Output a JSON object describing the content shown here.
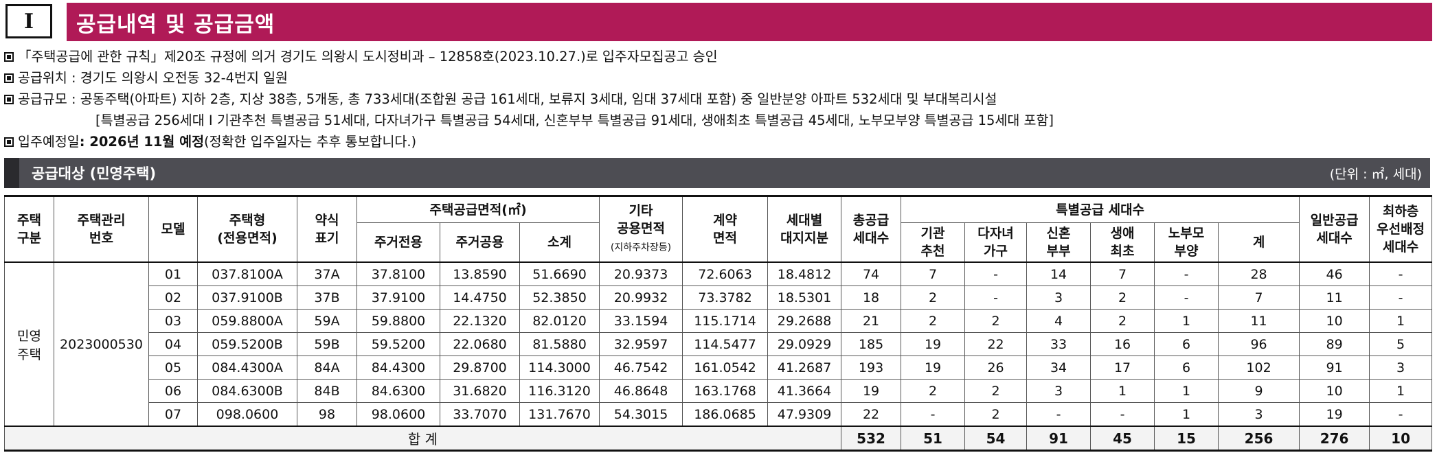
{
  "header": {
    "section_number": "Ⅰ",
    "title": "공급내역 및 공급금액"
  },
  "notes": {
    "approval": "「주택공급에 관한 규칙」제20조 규정에 의거 경기도 의왕시 도시정비과 – 12858호(2023.10.27.)로 입주자모집공고 승인",
    "location": "공급위치 : 경기도 의왕시 오전동 32-4번지 일원",
    "scale": "공급규모 : 공동주택(아파트) 지하 2층, 지상 38층, 5개동, 총 733세대(조합원 공급 161세대, 보류지 3세대, 임대 37세대 포함) 중 일반분양 아파트 532세대 및 부대복리시설",
    "scale_detail": "[특별공급 256세대 I 기관추천 특별공급 51세대, 다자녀가구 특별공급 54세대, 신혼부부 특별공급 91세대, 생애최초 특별공급 45세대, 노부모부양 특별공급 15세대 포함]",
    "movein_label": "입주예정일",
    "movein_value": ": 2026년 11월 예정",
    "movein_note": "(정확한 입주일자는 추후 통보합니다.)"
  },
  "section": {
    "title": "공급대상 (민영주택)",
    "unit": "(단위 : ㎡, 세대)"
  },
  "table": {
    "headers": {
      "housing_type": "주택\n구분",
      "mgmt_no": "주택관리\n번호",
      "model": "모델",
      "house_type": "주택형\n(전용면적)",
      "abbr": "약식\n표기",
      "supply_area": "주택공급면적(㎡)",
      "exclusive": "주거전용",
      "common": "주거공용",
      "subtotal": "소계",
      "other_common": "기타\n공용면적",
      "other_common_note": "(지하주차장등)",
      "contract_area": "계약\n면적",
      "land_share": "세대별\n대지지분",
      "total_units": "총공급\n세대수",
      "special": "특별공급 세대수",
      "institution": "기관\n추천",
      "multichild": "다자녀\n가구",
      "newlywed": "신혼\n부부",
      "first_time": "생애\n최초",
      "elderly": "노부모\n부양",
      "special_sum": "계",
      "general": "일반공급\n세대수",
      "lowest_floor": "최하층\n우선배정\n세대수"
    },
    "group_label": "민영\n주택",
    "mgmt_number": "2023000530",
    "rows": [
      {
        "model": "01",
        "type": "037.8100A",
        "abbr": "37A",
        "excl": "37.8100",
        "common": "13.8590",
        "sub": "51.6690",
        "other": "20.9373",
        "contract": "72.6063",
        "land": "18.4812",
        "total": "74",
        "inst": "7",
        "multi": "-",
        "newly": "14",
        "first": "7",
        "elder": "-",
        "ssum": "28",
        "gen": "46",
        "low": "-"
      },
      {
        "model": "02",
        "type": "037.9100B",
        "abbr": "37B",
        "excl": "37.9100",
        "common": "14.4750",
        "sub": "52.3850",
        "other": "20.9932",
        "contract": "73.3782",
        "land": "18.5301",
        "total": "18",
        "inst": "2",
        "multi": "-",
        "newly": "3",
        "first": "2",
        "elder": "-",
        "ssum": "7",
        "gen": "11",
        "low": "-"
      },
      {
        "model": "03",
        "type": "059.8800A",
        "abbr": "59A",
        "excl": "59.8800",
        "common": "22.1320",
        "sub": "82.0120",
        "other": "33.1594",
        "contract": "115.1714",
        "land": "29.2688",
        "total": "21",
        "inst": "2",
        "multi": "2",
        "newly": "4",
        "first": "2",
        "elder": "1",
        "ssum": "11",
        "gen": "10",
        "low": "1"
      },
      {
        "model": "04",
        "type": "059.5200B",
        "abbr": "59B",
        "excl": "59.5200",
        "common": "22.0680",
        "sub": "81.5880",
        "other": "32.9597",
        "contract": "114.5477",
        "land": "29.0929",
        "total": "185",
        "inst": "19",
        "multi": "22",
        "newly": "33",
        "first": "16",
        "elder": "6",
        "ssum": "96",
        "gen": "89",
        "low": "5"
      },
      {
        "model": "05",
        "type": "084.4300A",
        "abbr": "84A",
        "excl": "84.4300",
        "common": "29.8700",
        "sub": "114.3000",
        "other": "46.7542",
        "contract": "161.0542",
        "land": "41.2687",
        "total": "193",
        "inst": "19",
        "multi": "26",
        "newly": "34",
        "first": "17",
        "elder": "6",
        "ssum": "102",
        "gen": "91",
        "low": "3"
      },
      {
        "model": "06",
        "type": "084.6300B",
        "abbr": "84B",
        "excl": "84.6300",
        "common": "31.6820",
        "sub": "116.3120",
        "other": "46.8648",
        "contract": "163.1768",
        "land": "41.3664",
        "total": "19",
        "inst": "2",
        "multi": "2",
        "newly": "3",
        "first": "1",
        "elder": "1",
        "ssum": "9",
        "gen": "10",
        "low": "1"
      },
      {
        "model": "07",
        "type": "098.0600",
        "abbr": "98",
        "excl": "98.0600",
        "common": "33.7070",
        "sub": "131.7670",
        "other": "54.3015",
        "contract": "186.0685",
        "land": "47.9309",
        "total": "22",
        "inst": "-",
        "multi": "2",
        "newly": "-",
        "first": "-",
        "elder": "1",
        "ssum": "3",
        "gen": "19",
        "low": "-"
      }
    ],
    "total": {
      "label": "합 계",
      "total": "532",
      "inst": "51",
      "multi": "54",
      "newly": "91",
      "first": "45",
      "elder": "15",
      "ssum": "256",
      "gen": "276",
      "low": "10"
    }
  }
}
